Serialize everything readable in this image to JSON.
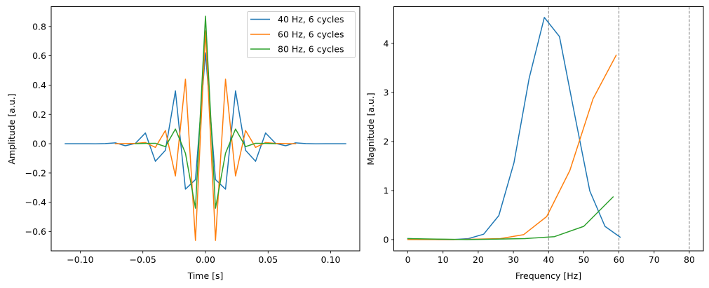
{
  "chart_data": [
    {
      "type": "line",
      "title": "",
      "xlabel": "Time [s]",
      "ylabel": "Amplitude [a.u.]",
      "xlim": [
        -0.1232,
        0.1232
      ],
      "ylim": [
        -0.7312,
        0.9352
      ],
      "xticks": [
        -0.1,
        -0.05,
        0.0,
        0.05,
        0.1
      ],
      "xtick_labels": [
        "−0.10",
        "−0.05",
        "0.00",
        "0.05",
        "0.10"
      ],
      "yticks": [
        -0.6,
        -0.4,
        -0.2,
        0.0,
        0.2,
        0.4,
        0.6,
        0.8
      ],
      "ytick_labels": [
        "−0.6",
        "−0.4",
        "−0.2",
        "0.0",
        "0.2",
        "0.4",
        "0.6",
        "0.8"
      ],
      "grid": false,
      "legend_position": "top-right",
      "series": [
        {
          "name": "40 Hz, 6 cycles",
          "color": "#1f77b4",
          "x": [
            -0.112,
            -0.104,
            -0.096,
            -0.088,
            -0.08,
            -0.072,
            -0.064,
            -0.056,
            -0.048,
            -0.04,
            -0.032,
            -0.024,
            -0.016,
            -0.008,
            0.0,
            0.008,
            0.016,
            0.024,
            0.032,
            0.04,
            0.048,
            0.056,
            0.064,
            0.072,
            0.08,
            0.088,
            0.096,
            0.104,
            0.112
          ],
          "y": [
            0.0,
            0.0,
            0.0,
            -0.001,
            0.001,
            0.006,
            -0.014,
            0.002,
            0.073,
            -0.12,
            -0.045,
            0.36,
            -0.31,
            -0.245,
            0.62,
            -0.245,
            -0.31,
            0.36,
            -0.045,
            -0.12,
            0.073,
            0.002,
            -0.014,
            0.006,
            0.001,
            -0.001,
            0.0,
            0.0,
            0.0
          ]
        },
        {
          "name": "60 Hz, 6 cycles",
          "color": "#ff7f0e",
          "x": [
            -0.072,
            -0.064,
            -0.056,
            -0.048,
            -0.04,
            -0.032,
            -0.024,
            -0.016,
            -0.008,
            0.0,
            0.008,
            0.016,
            0.024,
            0.032,
            0.04,
            0.048,
            0.056,
            0.064,
            0.072
          ],
          "y": [
            0.0,
            0.001,
            0.002,
            0.008,
            -0.025,
            0.09,
            -0.22,
            0.44,
            -0.66,
            0.77,
            -0.66,
            0.44,
            -0.22,
            0.09,
            -0.025,
            0.008,
            0.002,
            0.001,
            0.0
          ]
        },
        {
          "name": "80 Hz, 6 cycles",
          "color": "#2ca02c",
          "x": [
            -0.056,
            -0.048,
            -0.04,
            -0.032,
            -0.024,
            -0.016,
            -0.008,
            0.0,
            0.008,
            0.016,
            0.024,
            0.032,
            0.04,
            0.048,
            0.056
          ],
          "y": [
            0.0,
            0.002,
            0.003,
            -0.02,
            0.1,
            -0.065,
            -0.44,
            0.87,
            -0.44,
            -0.065,
            0.1,
            -0.02,
            0.003,
            0.002,
            0.0
          ]
        }
      ]
    },
    {
      "type": "line",
      "title": "",
      "xlabel": "Frequency [Hz]",
      "ylabel": "Magnitude [a.u.]",
      "xlim": [
        -4.0,
        84.0
      ],
      "ylim": [
        -0.23,
        4.75
      ],
      "xticks": [
        0,
        10,
        20,
        30,
        40,
        50,
        60,
        70,
        80
      ],
      "xtick_labels": [
        "0",
        "10",
        "20",
        "30",
        "40",
        "50",
        "60",
        "70",
        "80"
      ],
      "yticks": [
        0,
        1,
        2,
        3,
        4
      ],
      "ytick_labels": [
        "0",
        "1",
        "2",
        "3",
        "4"
      ],
      "grid": false,
      "vlines": [
        40,
        60,
        80
      ],
      "vline_color": "#808080",
      "series": [
        {
          "name": "40 Hz, 6 cycles",
          "color": "#1f77b4",
          "x": [
            0.0,
            4.31,
            8.62,
            12.93,
            17.24,
            21.55,
            25.86,
            30.17,
            34.48,
            38.79,
            43.1,
            47.41,
            51.72,
            56.03,
            60.34
          ],
          "y": [
            0.02,
            0.01,
            0.0,
            0.0,
            0.02,
            0.11,
            0.49,
            1.57,
            3.29,
            4.53,
            4.14,
            2.55,
            0.99,
            0.27,
            0.05
          ]
        },
        {
          "name": "60 Hz, 6 cycles",
          "color": "#ff7f0e",
          "x": [
            0.0,
            6.58,
            13.16,
            19.74,
            26.32,
            32.89,
            39.47,
            46.05,
            52.63,
            59.21
          ],
          "y": [
            0.0,
            0.0,
            0.0,
            0.01,
            0.02,
            0.1,
            0.47,
            1.41,
            2.87,
            3.76
          ]
        },
        {
          "name": "80 Hz, 6 cycles",
          "color": "#2ca02c",
          "x": [
            0.0,
            8.33,
            16.67,
            25.0,
            33.33,
            41.67,
            50.0,
            58.33
          ],
          "y": [
            0.02,
            0.01,
            0.0,
            0.01,
            0.02,
            0.06,
            0.27,
            0.87
          ]
        }
      ]
    }
  ]
}
